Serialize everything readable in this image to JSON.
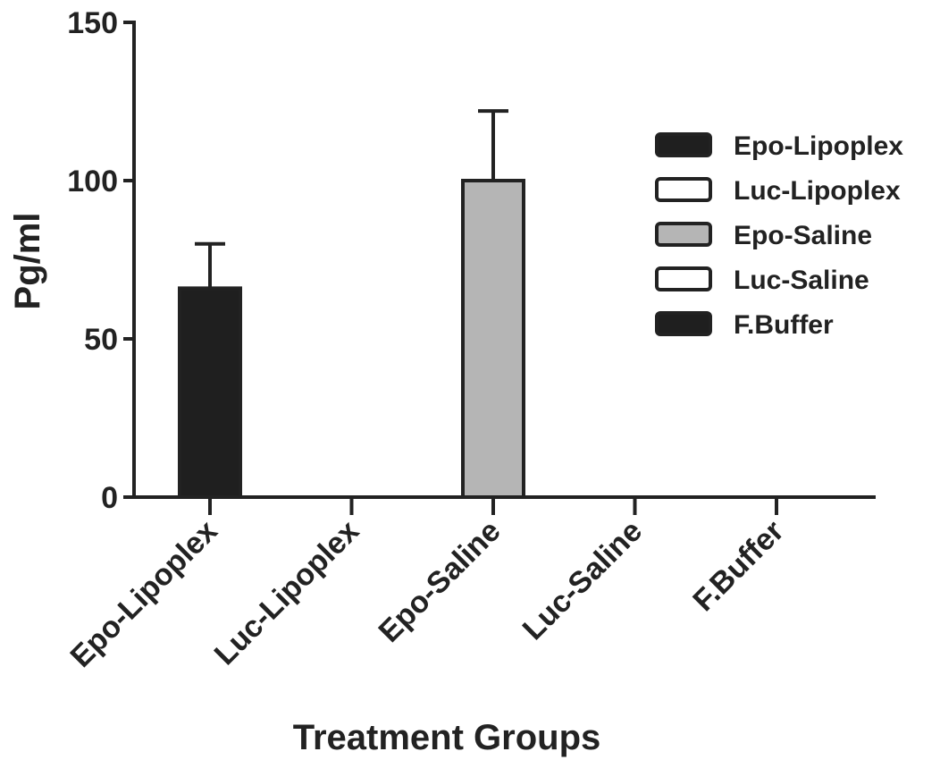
{
  "chart_data": {
    "type": "bar",
    "title": "",
    "xlabel": "Treatment Groups",
    "ylabel": "Pg/ml",
    "ylim": [
      0,
      150
    ],
    "yticks": [
      0,
      50,
      100,
      150
    ],
    "categories": [
      "Epo-Lipoplex",
      "Luc-Lipoplex",
      "Epo-Saline",
      "Luc-Saline",
      "F.Buffer"
    ],
    "values": [
      66,
      0,
      100,
      0,
      0
    ],
    "errors": [
      14,
      0,
      22,
      0,
      0
    ],
    "grid": false,
    "legend": {
      "position": "right",
      "entries": [
        {
          "label": "Epo-Lipoplex",
          "fill": "#1f1f1f"
        },
        {
          "label": "Luc-Lipoplex",
          "fill": "#ffffff"
        },
        {
          "label": "Epo-Saline",
          "fill": "#b5b5b5"
        },
        {
          "label": "Luc-Saline",
          "fill": "#ffffff"
        },
        {
          "label": "F.Buffer",
          "fill": "#1f1f1f"
        }
      ]
    },
    "colors": {
      "axis": "#222222",
      "bar_stroke": "#222222"
    }
  }
}
